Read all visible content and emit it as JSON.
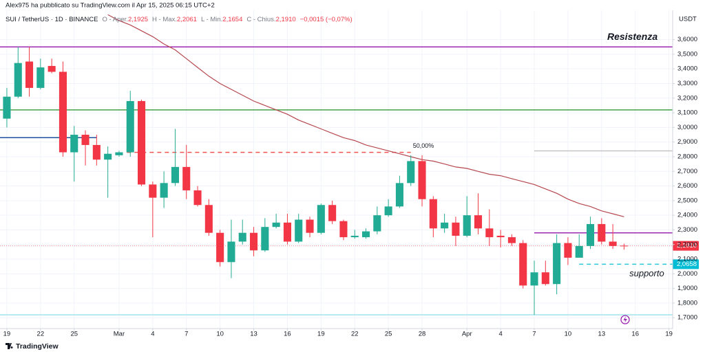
{
  "header": {
    "publisher": "Alex975 ha pubblicato su TradingView.com il Apr 15, 2025 06:15 UTC+2",
    "symbol": "SUI / TetherUS · 1D · BINANCE",
    "quote": [
      {
        "label": "O - Aper.",
        "value": "2,1925"
      },
      {
        "label": "H - Max.",
        "value": "2,2061"
      },
      {
        "label": "L - Min.",
        "value": "2,1654"
      },
      {
        "label": "C - Chius.",
        "value": "2,1910"
      }
    ],
    "change": "−0,0015 (−0,07%)"
  },
  "chart_data": {
    "type": "candlestick",
    "x": [
      0,
      1,
      2,
      3,
      4,
      5,
      6,
      7,
      8,
      9,
      10,
      11,
      12,
      13,
      14,
      15,
      16,
      17,
      18,
      19,
      20,
      21,
      22,
      23,
      24,
      25,
      26,
      27,
      28,
      29,
      30,
      31,
      32,
      33,
      34,
      35,
      36,
      37,
      38,
      39,
      40,
      41,
      42,
      43,
      44,
      45,
      46,
      47,
      48,
      49,
      50,
      51,
      52,
      53,
      54,
      55
    ],
    "open": [
      3.06,
      3.21,
      3.45,
      3.27,
      3.42,
      3.38,
      2.83,
      2.95,
      2.88,
      2.78,
      2.81,
      2.83,
      3.18,
      2.61,
      2.52,
      2.62,
      2.73,
      2.57,
      2.47,
      2.28,
      2.08,
      2.22,
      2.28,
      2.16,
      2.32,
      2.35,
      2.22,
      2.37,
      2.28,
      2.47,
      2.36,
      2.25,
      2.25,
      2.29,
      2.4,
      2.46,
      2.62,
      2.77,
      2.51,
      2.31,
      2.35,
      2.26,
      2.4,
      2.31,
      2.26,
      2.25,
      2.21,
      1.92,
      2.01,
      1.93,
      2.21,
      2.11,
      2.19,
      2.34,
      2.22,
      2.1925
    ],
    "high": [
      3.27,
      3.55,
      3.55,
      3.47,
      3.47,
      3.45,
      3.01,
      2.98,
      2.95,
      2.87,
      2.84,
      3.25,
      3.19,
      2.63,
      2.7,
      2.99,
      2.88,
      2.6,
      2.51,
      2.3,
      2.37,
      2.37,
      2.32,
      2.38,
      2.41,
      2.41,
      2.41,
      2.39,
      2.48,
      2.5,
      2.37,
      2.3,
      2.31,
      2.46,
      2.51,
      2.67,
      2.81,
      2.81,
      2.53,
      2.41,
      2.39,
      2.53,
      2.55,
      2.44,
      2.3,
      2.27,
      2.23,
      2.09,
      2.09,
      2.27,
      2.25,
      2.27,
      2.39,
      2.38,
      2.34,
      2.2061
    ],
    "low": [
      3.0,
      3.2,
      3.21,
      3.26,
      3.37,
      2.8,
      2.63,
      2.74,
      2.74,
      2.52,
      2.8,
      2.8,
      2.6,
      2.25,
      2.45,
      2.6,
      2.51,
      2.46,
      2.26,
      2.05,
      1.97,
      2.2,
      2.12,
      2.15,
      2.31,
      2.2,
      2.21,
      2.25,
      2.27,
      2.34,
      2.23,
      2.24,
      2.24,
      2.27,
      2.39,
      2.45,
      2.6,
      2.46,
      2.25,
      2.28,
      2.19,
      2.25,
      2.27,
      2.19,
      2.18,
      2.19,
      1.9,
      1.72,
      1.92,
      1.86,
      2.06,
      2.11,
      2.17,
      2.2,
      2.17,
      2.1654
    ],
    "close": [
      3.21,
      3.44,
      3.27,
      3.41,
      3.38,
      2.83,
      2.95,
      2.88,
      2.78,
      2.82,
      2.83,
      3.18,
      2.61,
      2.52,
      2.62,
      2.73,
      2.57,
      2.47,
      2.28,
      2.08,
      2.22,
      2.28,
      2.16,
      2.32,
      2.35,
      2.22,
      2.37,
      2.28,
      2.47,
      2.36,
      2.25,
      2.26,
      2.29,
      2.4,
      2.46,
      2.62,
      2.77,
      2.51,
      2.31,
      2.35,
      2.26,
      2.4,
      2.31,
      2.25,
      2.25,
      2.21,
      1.92,
      2.01,
      1.93,
      2.21,
      2.11,
      2.19,
      2.34,
      2.22,
      2.19,
      2.191
    ],
    "up_color": "#22ab94",
    "down_color": "#f23645",
    "moving_average": {
      "color": "#b5474e",
      "values": [
        null,
        null,
        null,
        null,
        null,
        null,
        null,
        null,
        null,
        3.77,
        3.73,
        3.7,
        3.66,
        3.62,
        3.57,
        3.53,
        3.47,
        3.41,
        3.35,
        3.3,
        3.26,
        3.22,
        3.18,
        3.15,
        3.12,
        3.09,
        3.05,
        3.02,
        2.99,
        2.96,
        2.93,
        2.91,
        2.88,
        2.86,
        2.84,
        2.82,
        2.8,
        2.78,
        2.77,
        2.75,
        2.73,
        2.72,
        2.7,
        2.68,
        2.67,
        2.65,
        2.63,
        2.61,
        2.58,
        2.55,
        2.51,
        2.48,
        2.46,
        2.43,
        2.41,
        2.39
      ]
    },
    "xlim": [
      -0.61,
      59.33
    ],
    "xticks": [
      {
        "value": 0,
        "label": "19"
      },
      {
        "value": 3,
        "label": "22"
      },
      {
        "value": 6,
        "label": "25"
      },
      {
        "value": 10,
        "label": "Mar"
      },
      {
        "value": 13,
        "label": "4"
      },
      {
        "value": 16,
        "label": "7"
      },
      {
        "value": 19,
        "label": "10"
      },
      {
        "value": 22,
        "label": "13"
      },
      {
        "value": 25,
        "label": "16"
      },
      {
        "value": 28,
        "label": "19"
      },
      {
        "value": 31,
        "label": "22"
      },
      {
        "value": 34,
        "label": "25"
      },
      {
        "value": 37,
        "label": "28"
      },
      {
        "value": 41,
        "label": "Apr"
      },
      {
        "value": 44,
        "label": "4"
      },
      {
        "value": 47,
        "label": "7"
      },
      {
        "value": 50,
        "label": "10"
      },
      {
        "value": 53,
        "label": "13"
      },
      {
        "value": 56,
        "label": "16"
      },
      {
        "value": 59,
        "label": "19"
      }
    ],
    "ylim": [
      1.64,
      3.8
    ],
    "yticks": [
      {
        "value": 1.7,
        "label": "1,7000"
      },
      {
        "value": 1.8,
        "label": "1,8000"
      },
      {
        "value": 1.9,
        "label": "1,9000"
      },
      {
        "value": 2.0,
        "label": "2,0000"
      },
      {
        "value": 2.1,
        "label": "2,1000"
      },
      {
        "value": 2.2,
        "label": "2,2000"
      },
      {
        "value": 2.3,
        "label": "2,3000"
      },
      {
        "value": 2.4,
        "label": "2,4000"
      },
      {
        "value": 2.5,
        "label": "2,5000"
      },
      {
        "value": 2.6,
        "label": "2,6000"
      },
      {
        "value": 2.7,
        "label": "2,7000"
      },
      {
        "value": 2.8,
        "label": "2,8000"
      },
      {
        "value": 2.9,
        "label": "2,9000"
      },
      {
        "value": 3.0,
        "label": "3,0000"
      },
      {
        "value": 3.1,
        "label": "3,1000"
      },
      {
        "value": 3.2,
        "label": "3,2000"
      },
      {
        "value": 3.3,
        "label": "3,3000"
      },
      {
        "value": 3.4,
        "label": "3,4000"
      },
      {
        "value": 3.5,
        "label": "3,5000"
      },
      {
        "value": 3.6,
        "label": "3,6000"
      }
    ],
    "y_unit": "USDT",
    "grid": true,
    "levels": [
      {
        "value": 3.55,
        "label": "Resistenza",
        "color": "#9c27b0"
      },
      {
        "value": 3.12,
        "color": "#43a047"
      },
      {
        "value": 2.93,
        "color": "#1e50a0",
        "x_range": [
          -0.61,
          8
        ]
      },
      {
        "value": 2.83,
        "label": "50,00%",
        "color": "#f05350",
        "dashed": true,
        "x_range": [
          10.7,
          36
        ]
      },
      {
        "value": 2.84,
        "color": "#c4c4c4",
        "x_range": [
          47,
          59.33
        ]
      },
      {
        "value": 2.28,
        "color": "#9c27b0",
        "x_range": [
          47,
          59.33
        ]
      },
      {
        "value": 2.0658,
        "label": "supporto",
        "color": "#26c6da",
        "dashed": true,
        "x_range": [
          51,
          59.33
        ]
      },
      {
        "value": 1.72,
        "color": "#9fe3ec"
      }
    ],
    "price_labels": [
      {
        "value": 2.191,
        "label": "2,1910",
        "color": "#f23645",
        "line": true
      },
      {
        "value": 2.0658,
        "label": "2,0658",
        "color": "#00bcd4"
      }
    ]
  },
  "footer": {
    "brand": "TradingView"
  }
}
